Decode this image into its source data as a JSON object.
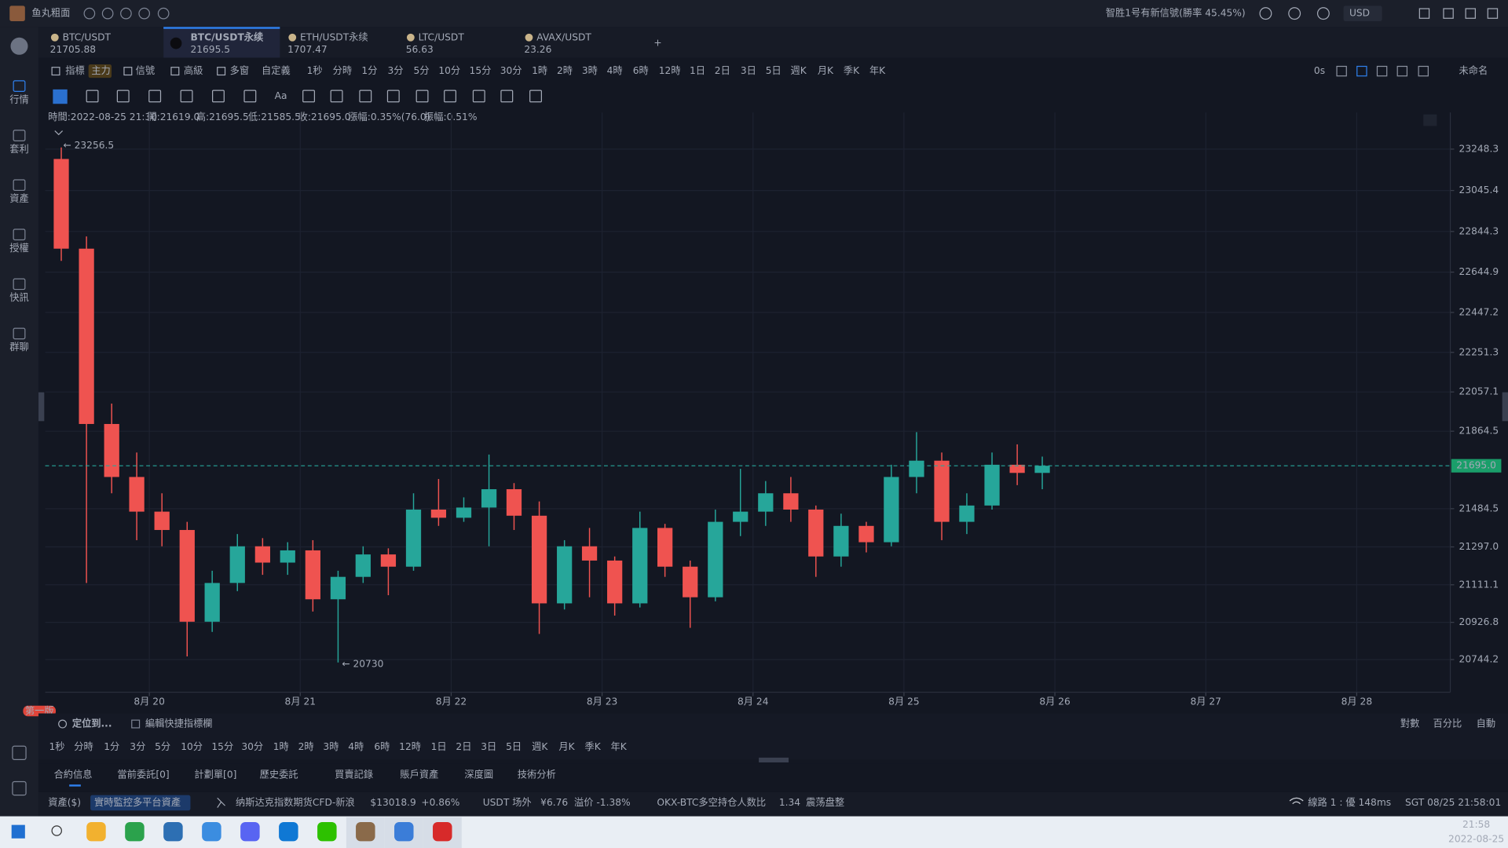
{
  "title_bar": {
    "app_name": "鱼丸粗面",
    "signal": "智胜1号有新信號(勝率 45.45%)",
    "currency": "USD"
  },
  "sidebar": [
    "行情",
    "套利",
    "資產",
    "授權",
    "快訊",
    "群聊"
  ],
  "badge": "第一版",
  "tabs": [
    {
      "symbol": "BTC/USDT",
      "price": "21705.88"
    },
    {
      "symbol": "BTC/USDT永续",
      "price": "21695.5"
    },
    {
      "symbol": "ETH/USDT永续",
      "price": "1707.47"
    },
    {
      "symbol": "LTC/USDT",
      "price": "56.63"
    },
    {
      "symbol": "AVAX/USDT",
      "price": "23.26"
    }
  ],
  "toolbar": {
    "buttons": [
      "指標",
      "主力",
      "信號",
      "高級",
      "多窗",
      "自定義"
    ],
    "periods": [
      "1秒",
      "分時",
      "1分",
      "3分",
      "5分",
      "10分",
      "15分",
      "30分",
      "1時",
      "2時",
      "3時",
      "4時",
      "6時",
      "12時",
      "1日",
      "2日",
      "3日",
      "5日",
      "週K",
      "月K",
      "季K",
      "年K"
    ],
    "refresh": "0s",
    "layout_name": "未命名",
    "text_tool": "Aa"
  },
  "info": [
    "時間:2022-08-25 21:30",
    "開:21619.0",
    "高:21695.5",
    "低:21585.5",
    "收:21695.0",
    "漲幅:0.35%(76.0)",
    "振幅:0.51%"
  ],
  "chart_data": {
    "type": "candlestick",
    "x": [
      19.333,
      19.5,
      19.667,
      19.833,
      20,
      20.167,
      20.333,
      20.5,
      20.667,
      20.833,
      21,
      21.167,
      21.333,
      21.5,
      21.667,
      21.833,
      22,
      22.167,
      22.333,
      22.5,
      22.667,
      22.833,
      23,
      23.167,
      23.333,
      23.5,
      23.667,
      23.833,
      24,
      24.167,
      24.333,
      24.5,
      24.667,
      24.833,
      25,
      25.167,
      25.333,
      25.5,
      25.667,
      25.833
    ],
    "open": [
      23200,
      22760,
      21900,
      21640,
      21470,
      21380,
      20930,
      21120,
      21300,
      21220,
      21280,
      21040,
      21150,
      21260,
      21200,
      21480,
      21440,
      21490,
      21580,
      21450,
      21020,
      21300,
      21230,
      21020,
      21390,
      21200,
      21050,
      21420,
      21470,
      21560,
      21480,
      21250,
      21400,
      21320,
      21640,
      21720,
      21420,
      21500,
      21700,
      21660
    ],
    "high": [
      23256.5,
      22820,
      22000,
      21760,
      21560,
      21420,
      21180,
      21360,
      21340,
      21320,
      21330,
      21180,
      21300,
      21290,
      21560,
      21630,
      21540,
      21750,
      21610,
      21520,
      21330,
      21390,
      21250,
      21470,
      21410,
      21230,
      21480,
      21680,
      21620,
      21640,
      21500,
      21460,
      21420,
      21700,
      21860,
      21760,
      21560,
      21760,
      21800,
      21740
    ],
    "low": [
      22700,
      21120,
      21560,
      21330,
      21300,
      20760,
      20880,
      21080,
      21160,
      21160,
      20980,
      20730,
      21120,
      21060,
      21180,
      21400,
      21420,
      21300,
      21380,
      20870,
      20990,
      21050,
      20960,
      21000,
      21150,
      20900,
      21030,
      21350,
      21400,
      21420,
      21150,
      21200,
      21270,
      21300,
      21560,
      21330,
      21360,
      21480,
      21600,
      21580
    ],
    "close": [
      22760,
      21900,
      21640,
      21470,
      21380,
      20930,
      21120,
      21300,
      21220,
      21280,
      21040,
      21150,
      21260,
      21200,
      21480,
      21440,
      21490,
      21580,
      21450,
      21020,
      21300,
      21230,
      21020,
      21390,
      21200,
      21050,
      21420,
      21470,
      21560,
      21480,
      21250,
      21400,
      21320,
      21640,
      21720,
      21420,
      21500,
      21700,
      21660,
      21695
    ],
    "up_color": "#26a69a",
    "down_color": "#ef5350",
    "xlim": [
      19.31,
      28.62
    ],
    "ylim": [
      20584,
      23428
    ],
    "xticks": [
      {
        "value": 20,
        "label": "8月 20"
      },
      {
        "value": 21,
        "label": "8月 21"
      },
      {
        "value": 22,
        "label": "8月 22"
      },
      {
        "value": 23,
        "label": "8月 23"
      },
      {
        "value": 24,
        "label": "8月 24"
      },
      {
        "value": 25,
        "label": "8月 25"
      },
      {
        "value": 26,
        "label": "8月 26"
      },
      {
        "value": 27,
        "label": "8月 27"
      },
      {
        "value": 28,
        "label": "8月 28"
      }
    ],
    "yticks": [
      23248.3,
      23045.4,
      22844.3,
      22644.9,
      22447.2,
      22251.3,
      22057.1,
      21864.5,
      21484.5,
      {
        "value": 21297,
        "label": "21297.0"
      },
      21111.1,
      20926.8,
      20744.2
    ],
    "last_price": {
      "value": 21695,
      "label": "21695.0"
    },
    "annotations": [
      "← 23256.5",
      "← 20730"
    ],
    "grid": true
  },
  "chart_footer": {
    "locate": "定位到...",
    "edit": "編輯快捷指標欄",
    "scales": [
      "對數",
      "百分比",
      "自動"
    ],
    "periods": [
      "1秒",
      "分時",
      "1分",
      "3分",
      "5分",
      "10分",
      "15分",
      "30分",
      "1時",
      "2時",
      "3時",
      "4時",
      "6時",
      "12時",
      "1日",
      "2日",
      "3日",
      "5日",
      "週K",
      "月K",
      "季K",
      "年K"
    ]
  },
  "bottom_tabs": [
    "合約信息",
    "當前委託[0]",
    "計劃單[0]",
    "歷史委託",
    "買賣記錄",
    "賬戶資產",
    "深度圖",
    "技術分析"
  ],
  "status": [
    "資產($)",
    "實時監控多平台資產",
    "纳斯达克指数期货CFD-新浪",
    "$13018.9",
    "+0.86%",
    "USDT 场外",
    "¥6.76",
    "溢价 -1.38%",
    "OKX-BTC多空持仓人数比",
    "1.34",
    "震荡盘整",
    "線路 1 : 優 148ms",
    "SGT 08/25 21:58:01"
  ],
  "taskbar": {
    "time": "21:58",
    "date": "2022-08-25"
  }
}
